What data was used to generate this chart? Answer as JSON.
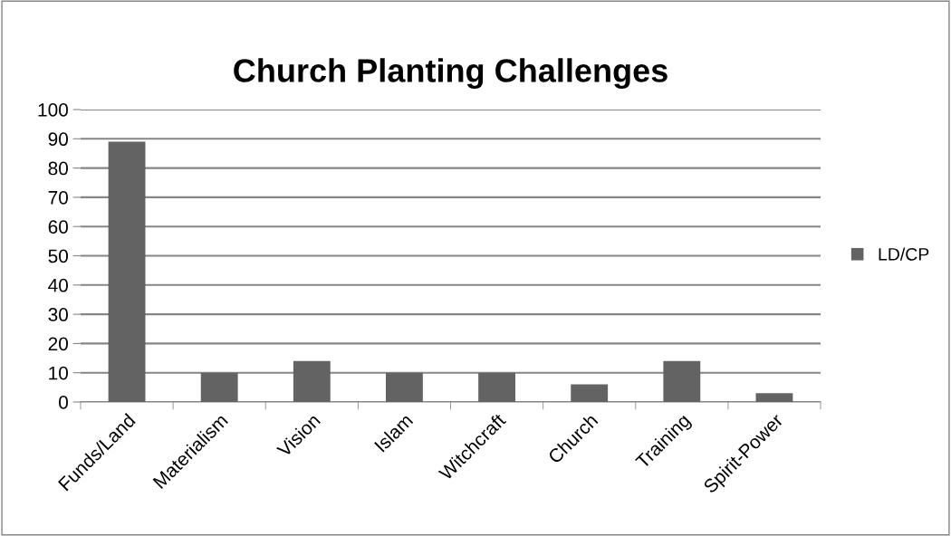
{
  "chart_data": {
    "type": "bar",
    "title": "Church Planting Challenges",
    "categories": [
      "Funds/Land",
      "Materialism",
      "Vision",
      "Islam",
      "Witchcraft",
      "Church",
      "Training",
      "Spirit-Power"
    ],
    "series": [
      {
        "name": "LD/CP",
        "color": "#636363",
        "values": [
          89,
          10,
          14,
          10,
          10,
          6,
          14,
          3
        ]
      }
    ],
    "ylim": [
      0,
      100
    ],
    "yticks": [
      0,
      10,
      20,
      30,
      40,
      50,
      60,
      70,
      80,
      90,
      100
    ],
    "grid": "y",
    "legend": "right"
  }
}
